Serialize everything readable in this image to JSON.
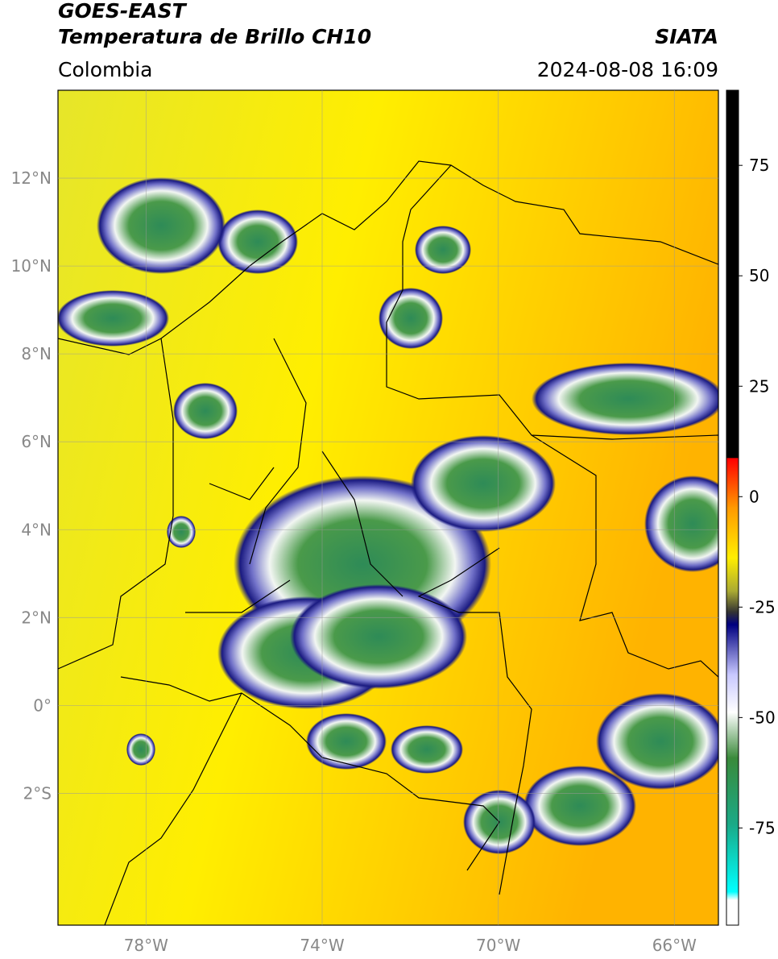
{
  "header": {
    "title": "GOES-EAST",
    "subtitle": "Temperatura de Brillo CH10",
    "source": "SIATA",
    "region": "Colombia",
    "datetime": "2024-08-08 16:09"
  },
  "map": {
    "lon_range": [
      -80,
      -65
    ],
    "lat_range": [
      -5,
      14
    ],
    "lat_ticks": [
      {
        "value": 12,
        "label": "12°N"
      },
      {
        "value": 10,
        "label": "10°N"
      },
      {
        "value": 8,
        "label": "8°N"
      },
      {
        "value": 6,
        "label": "6°N"
      },
      {
        "value": 4,
        "label": "4°N"
      },
      {
        "value": 2,
        "label": "2°N"
      },
      {
        "value": 0,
        "label": "0°"
      },
      {
        "value": -2,
        "label": "2°S"
      }
    ],
    "lon_ticks": [
      {
        "value": -78,
        "label": "78°W"
      },
      {
        "value": -74,
        "label": "74°W"
      },
      {
        "value": -70,
        "label": "70°W"
      },
      {
        "value": -66,
        "label": "66°W"
      }
    ]
  },
  "colorbar": {
    "lim": [
      -97,
      92
    ],
    "ticks": [
      75,
      50,
      25,
      0,
      -25,
      -50,
      -75
    ]
  }
}
